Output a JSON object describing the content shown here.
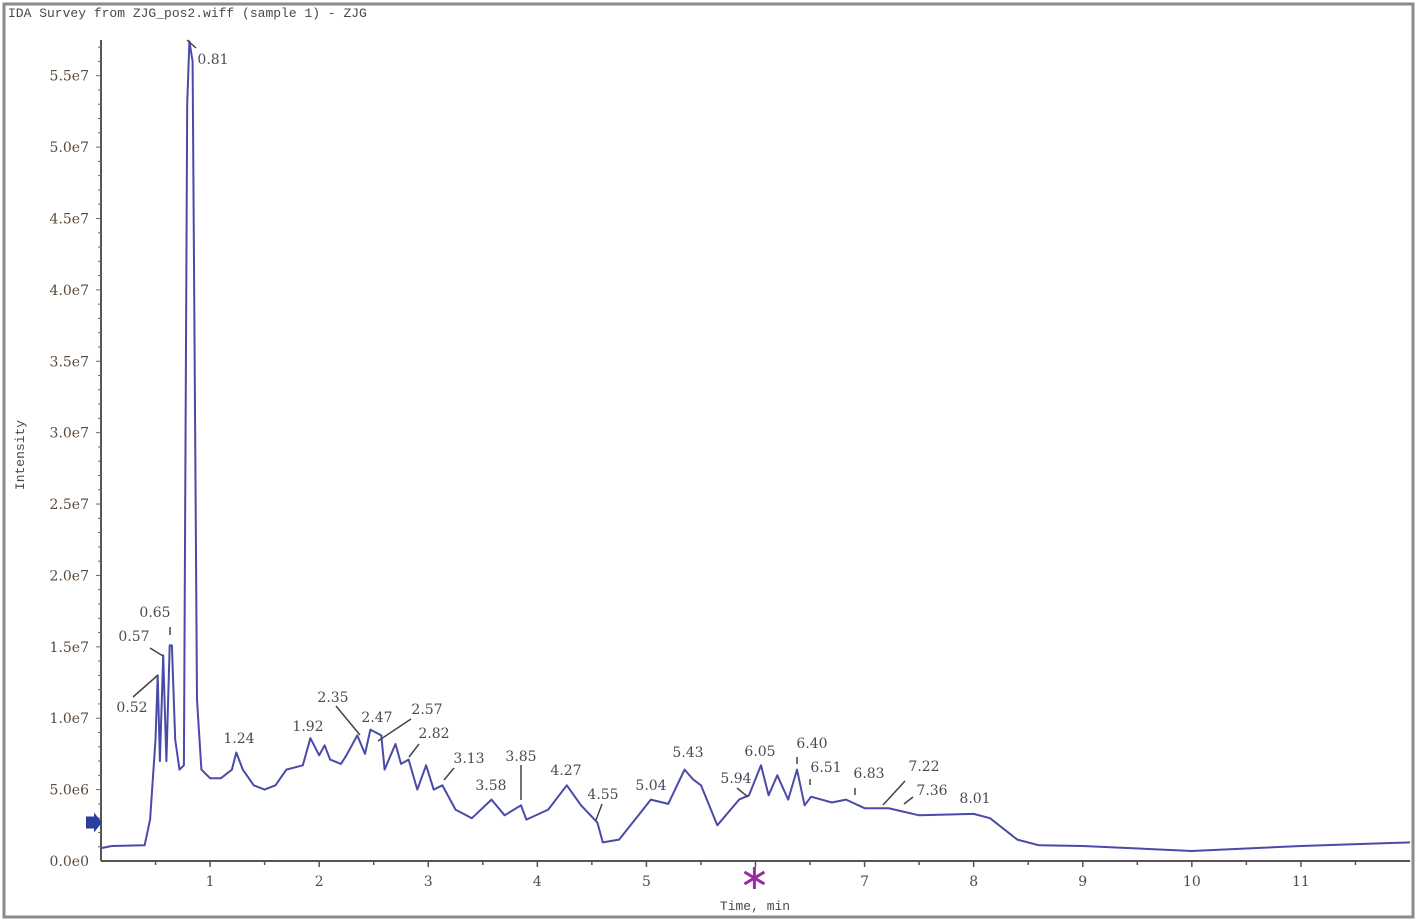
{
  "chart_data": {
    "type": "line",
    "title": "IDA Survey from ZJG_pos2.wiff (sample 1) - ZJG",
    "xlabel": "Time, min",
    "ylabel": "Intensity",
    "xlim": [
      0,
      12
    ],
    "ylim": [
      0,
      57500000
    ],
    "grid": false,
    "legend": "none",
    "line_color": "#4a4aa8",
    "x_tick_labels": [
      "1",
      "2",
      "3",
      "4",
      "5",
      "7",
      "8",
      "9",
      "10",
      "11"
    ],
    "x_tick_values": [
      1,
      2,
      3,
      4,
      5,
      7,
      8,
      9,
      10,
      11
    ],
    "y_tick_labels": [
      "0.0e0",
      "5.0e6",
      "1.0e7",
      "1.5e7",
      "2.0e7",
      "2.5e7",
      "3.0e7",
      "3.5e7",
      "4.0e7",
      "4.5e7",
      "5.0e7",
      "5.5e7"
    ],
    "y_tick_values": [
      0,
      5000000,
      10000000,
      15000000,
      20000000,
      25000000,
      30000000,
      35000000,
      40000000,
      45000000,
      50000000,
      55000000
    ],
    "series": [
      {
        "x": [
          0,
          0.1,
          0.4,
          0.45,
          0.5,
          0.52,
          0.54,
          0.57,
          0.6,
          0.63,
          0.65,
          0.68,
          0.72,
          0.76,
          0.79,
          0.81,
          0.84,
          0.88,
          0.92,
          1.0,
          1.1,
          1.2,
          1.24,
          1.3,
          1.4,
          1.5,
          1.6,
          1.7,
          1.85,
          1.92,
          2.0,
          2.05,
          2.1,
          2.2,
          2.25,
          2.35,
          2.42,
          2.47,
          2.57,
          2.6,
          2.7,
          2.75,
          2.82,
          2.9,
          2.98,
          3.05,
          3.13,
          3.25,
          3.4,
          3.58,
          3.7,
          3.85,
          3.9,
          4.1,
          4.27,
          4.4,
          4.55,
          4.6,
          4.75,
          5.0,
          5.04,
          5.2,
          5.35,
          5.43,
          5.5,
          5.65,
          5.85,
          5.94,
          6.05,
          6.12,
          6.2,
          6.3,
          6.38,
          6.45,
          6.51,
          6.7,
          6.83,
          7.0,
          7.22,
          7.5,
          8.0,
          8.15,
          8.4,
          8.6,
          9.0,
          10.0,
          11.0,
          12.0
        ],
        "y": [
          900000,
          1050000,
          1100000,
          2900000,
          8500000,
          13000000,
          7000000,
          14400000,
          7000000,
          15100000,
          15100000,
          8500000,
          6400000,
          6700000,
          53000000,
          57400000,
          56000000,
          11300000,
          6400000,
          5800000,
          5800000,
          6400000,
          7600000,
          6400000,
          5300000,
          5000000,
          5300000,
          6400000,
          6700000,
          8600000,
          7400000,
          8100000,
          7100000,
          6800000,
          7400000,
          8800000,
          7500000,
          9200000,
          8800000,
          6400000,
          8200000,
          6800000,
          7100000,
          5000000,
          6700000,
          5000000,
          5300000,
          3600000,
          3000000,
          4300000,
          3200000,
          3900000,
          2900000,
          3600000,
          5300000,
          3900000,
          2700000,
          1300000,
          1500000,
          3900000,
          4300000,
          4000000,
          6400000,
          5700000,
          5300000,
          2500000,
          4300000,
          4600000,
          6700000,
          4600000,
          6000000,
          4300000,
          6400000,
          3900000,
          4500000,
          4100000,
          4300000,
          3700000,
          3700000,
          3200000,
          3300000,
          3000000,
          1500000,
          1100000,
          1050000,
          700000,
          1050000,
          1300000
        ]
      }
    ],
    "annotations": [
      "0.52",
      "0.57",
      "0.65",
      "0.81",
      "1.24",
      "1.92",
      "2.35",
      "2.47",
      "2.57",
      "2.82",
      "3.13",
      "3.58",
      "3.85",
      "4.27",
      "4.55",
      "5.04",
      "5.43",
      "5.94",
      "6.05",
      "6.40",
      "6.51",
      "6.83",
      "7.22",
      "7.36",
      "8.01"
    ],
    "markers": {
      "threshold_arrow_color": "#2b3e9c",
      "time_marker_color": "#9b2aa0",
      "threshold_arrow_value": 2700000,
      "time_marker_value": 5.99
    }
  }
}
